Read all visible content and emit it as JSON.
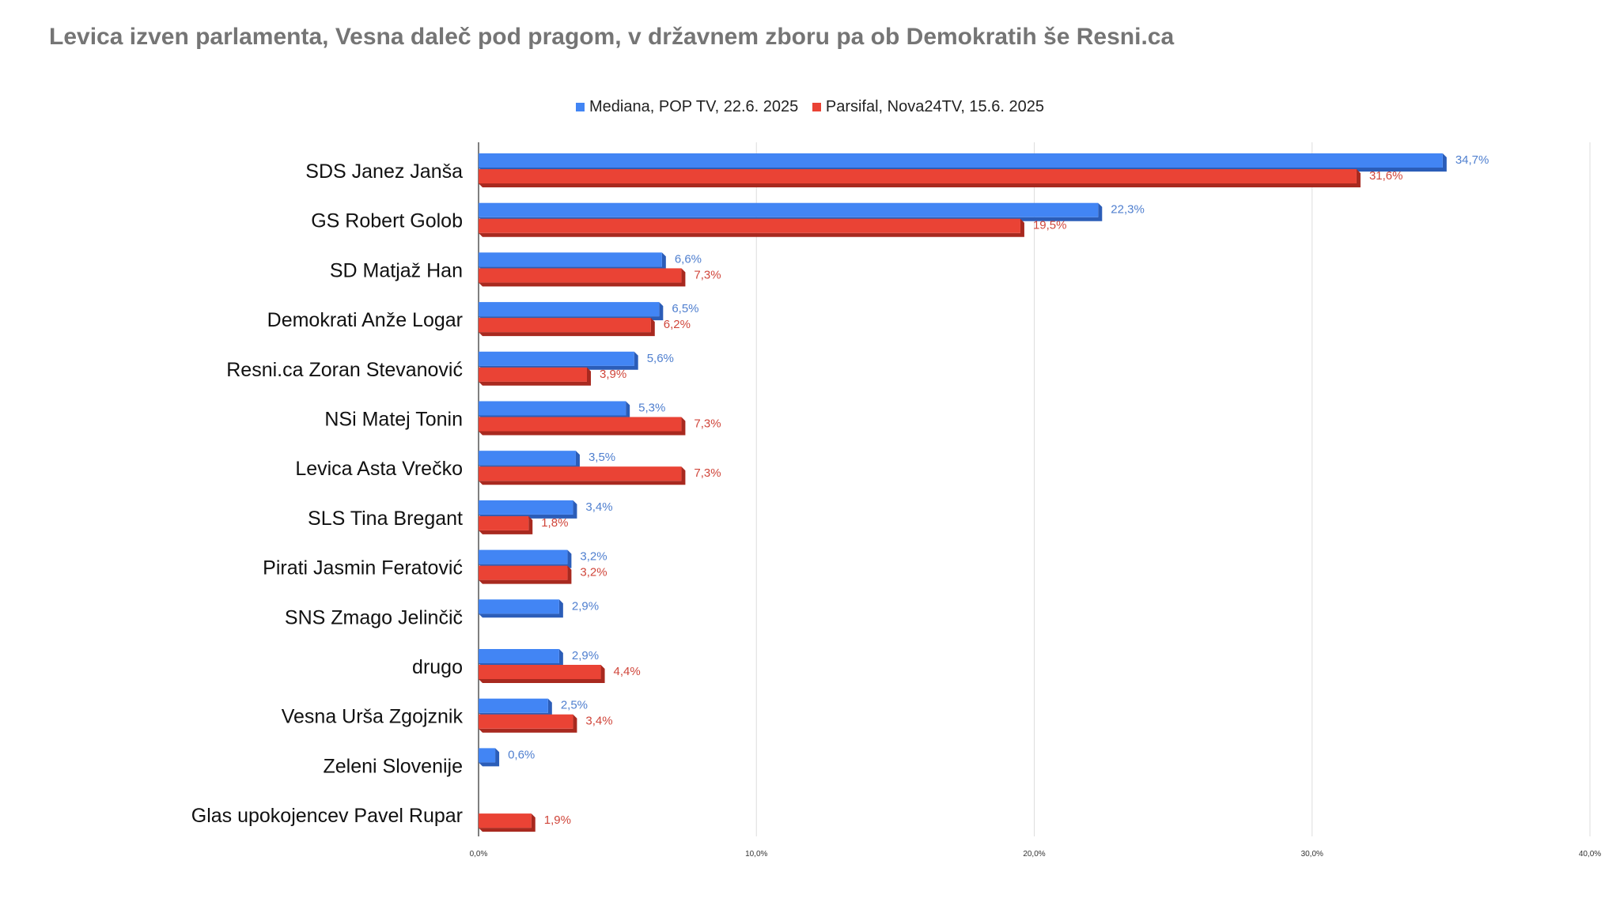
{
  "colors": {
    "series_a": "#4285f4",
    "series_a_dark": "#2b5db8",
    "series_b": "#ea4335",
    "series_b_dark": "#a8291f",
    "grid": "#dddddd",
    "label_a": "#4f7fcf",
    "label_b": "#d0463b"
  },
  "chart_data": {
    "type": "bar",
    "orientation": "horizontal",
    "title": "Levica izven parlamenta, Vesna daleč pod pragom, v državnem zboru pa ob Demokratih še Resni.ca",
    "categories": [
      "SDS Janez Janša",
      "GS Robert Golob",
      "SD Matjaž Han",
      "Demokrati Anže Logar",
      "Resni.ca Zoran Stevanović",
      "NSi Matej Tonin",
      "Levica  Asta Vrečko",
      "SLS Tina Bregant",
      "Pirati Jasmin Feratović",
      "SNS Zmago Jelinčič",
      "drugo",
      "Vesna Urša Zgojznik",
      "Zeleni Slovenije",
      "Glas upokojencev Pavel Rupar"
    ],
    "series": [
      {
        "name": "Mediana, POP TV, 22.6. 2025",
        "values": [
          34.7,
          22.3,
          6.6,
          6.5,
          5.6,
          5.3,
          3.5,
          3.4,
          3.2,
          2.9,
          2.9,
          2.5,
          0.6,
          null
        ],
        "labels": [
          "34,7%",
          "22,3%",
          "6,6%",
          "6,5%",
          "5,6%",
          "5,3%",
          "3,5%",
          "3,4%",
          "3,2%",
          "2,9%",
          "2,9%",
          "2,5%",
          "0,6%",
          ""
        ]
      },
      {
        "name": "Parsifal, Nova24TV, 15.6. 2025",
        "values": [
          31.6,
          19.5,
          7.3,
          6.2,
          3.9,
          7.3,
          7.3,
          1.8,
          3.2,
          null,
          4.4,
          3.4,
          null,
          1.9
        ],
        "labels": [
          "31,6%",
          "19,5%",
          "7,3%",
          "6,2%",
          "3,9%",
          "7,3%",
          "7,3%",
          "1,8%",
          "3,2%",
          "",
          "4,4%",
          "3,4%",
          "",
          "1,9%"
        ]
      }
    ],
    "x_ticks": [
      0,
      10,
      20,
      30,
      40
    ],
    "x_tick_labels": [
      "0,0%",
      "10,0%",
      "20,0%",
      "30,0%",
      "40,0%"
    ],
    "xlim": [
      0,
      40
    ],
    "grid": true,
    "legend_position": "top-center"
  }
}
